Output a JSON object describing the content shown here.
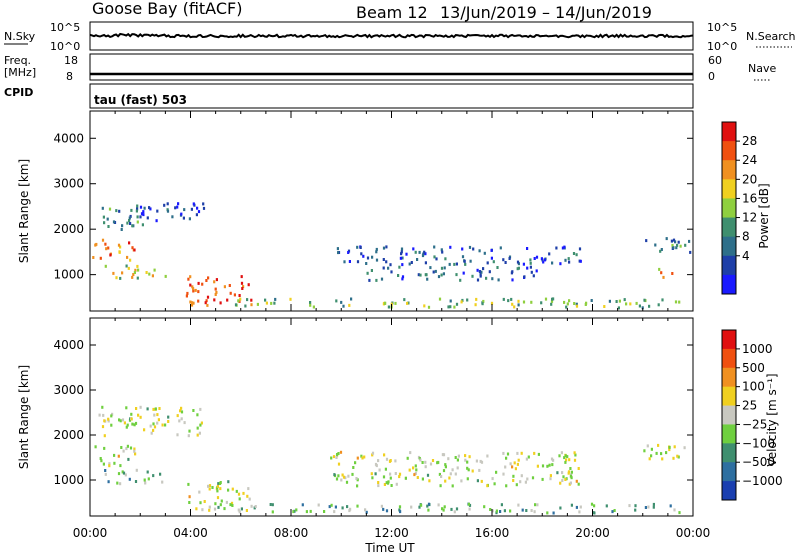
{
  "header": {
    "station": "Goose Bay (fitACF)",
    "beam": "Beam 12",
    "dates": "13/Jun/2019 – 14/Jun/2019"
  },
  "top_panels": {
    "nsky_label": "N.Sky",
    "nsearch_label": "N.Search",
    "log_top": "10^5",
    "log_bottom": "10^0",
    "freq_label_line1": "Freq.",
    "freq_label_line2": "[MHz]",
    "freq_ticks": [
      "18",
      "8"
    ],
    "nave_label": "Nave",
    "nave_ticks": [
      "60",
      "0"
    ],
    "cpid_label": "CPID",
    "cpid_value": "tau (fast) 503"
  },
  "colors": {
    "power_scale": [
      "#1a1aff",
      "#1e3fa8",
      "#2e6f8a",
      "#3f8f6f",
      "#8fcf3f",
      "#f0d020",
      "#f09020",
      "#f05010",
      "#e01010"
    ],
    "velocity_scale": [
      "#1a3fb0",
      "#2e6fa0",
      "#3f8f6f",
      "#6fcf3f",
      "#c8c8c0",
      "#f0d020",
      "#f09020",
      "#f05010",
      "#e01010"
    ]
  },
  "chart_data": [
    {
      "type": "heatmap",
      "name": "power",
      "xlabel": "Time UT",
      "ylabel": "Slant Range [km]",
      "y_ticks": [
        1000,
        2000,
        3000,
        4000
      ],
      "ylim": [
        200,
        4600
      ],
      "x_ticks": [
        "00:00",
        "04:00",
        "08:00",
        "12:00",
        "16:00",
        "20:00",
        "00:00"
      ],
      "xlim_hours": [
        0,
        24
      ],
      "colorbar": {
        "label": "Power [dB]",
        "ticks": [
          "28",
          "24",
          "20",
          "16",
          "12",
          "8",
          "4"
        ],
        "range": [
          0,
          32
        ]
      },
      "regions": [
        {
          "t0": 0.0,
          "t1": 1.8,
          "r0": 1350,
          "r1": 1800,
          "level": 0.75
        },
        {
          "t0": 0.3,
          "t1": 2.2,
          "r0": 2000,
          "r1": 2500,
          "level": 0.3
        },
        {
          "t0": 1.5,
          "t1": 4.5,
          "r0": 2200,
          "r1": 2650,
          "level": 0.2
        },
        {
          "t0": 0.5,
          "t1": 3.0,
          "r0": 950,
          "r1": 1250,
          "level": 0.55
        },
        {
          "t0": 3.8,
          "t1": 6.5,
          "r0": 350,
          "r1": 1000,
          "level": 0.85
        },
        {
          "t0": 5.0,
          "t1": 23.5,
          "r0": 300,
          "r1": 500,
          "level": 0.45
        },
        {
          "t0": 9.5,
          "t1": 19.5,
          "r0": 1250,
          "r1": 1650,
          "level": 0.2
        },
        {
          "t0": 11.0,
          "t1": 18.0,
          "r0": 900,
          "r1": 1200,
          "level": 0.22
        },
        {
          "t0": 22.0,
          "t1": 24.0,
          "r0": 1500,
          "r1": 1850,
          "level": 0.3
        },
        {
          "t0": 22.5,
          "t1": 23.3,
          "r0": 950,
          "r1": 1150,
          "level": 0.7
        }
      ]
    },
    {
      "type": "heatmap",
      "name": "velocity",
      "xlabel": "Time UT",
      "ylabel": "Slant Range [km]",
      "y_ticks": [
        1000,
        2000,
        3000,
        4000
      ],
      "ylim": [
        200,
        4600
      ],
      "x_ticks": [
        "00:00",
        "04:00",
        "08:00",
        "12:00",
        "16:00",
        "20:00",
        "00:00"
      ],
      "xlim_hours": [
        0,
        24
      ],
      "colorbar": {
        "label": "Velocity [m s⁻¹]",
        "ticks": [
          "1000",
          "500",
          "100",
          "25",
          "−25",
          "−100",
          "−500",
          "−1000"
        ],
        "range": [
          -1200,
          1200
        ]
      },
      "regions": [
        {
          "t0": 0.0,
          "t1": 1.8,
          "r0": 1350,
          "r1": 1800,
          "level": 0.5
        },
        {
          "t0": 0.3,
          "t1": 4.5,
          "r0": 2000,
          "r1": 2650,
          "level": 0.5
        },
        {
          "t0": 0.5,
          "t1": 3.0,
          "r0": 950,
          "r1": 1250,
          "level": 0.35
        },
        {
          "t0": 3.8,
          "t1": 6.5,
          "r0": 350,
          "r1": 1000,
          "level": 0.5
        },
        {
          "t0": 5.0,
          "t1": 23.5,
          "r0": 300,
          "r1": 500,
          "level": 0.35
        },
        {
          "t0": 9.5,
          "t1": 19.5,
          "r0": 900,
          "r1": 1650,
          "level": 0.5
        },
        {
          "t0": 22.0,
          "t1": 24.0,
          "r0": 1500,
          "r1": 1850,
          "level": 0.5
        }
      ]
    }
  ]
}
